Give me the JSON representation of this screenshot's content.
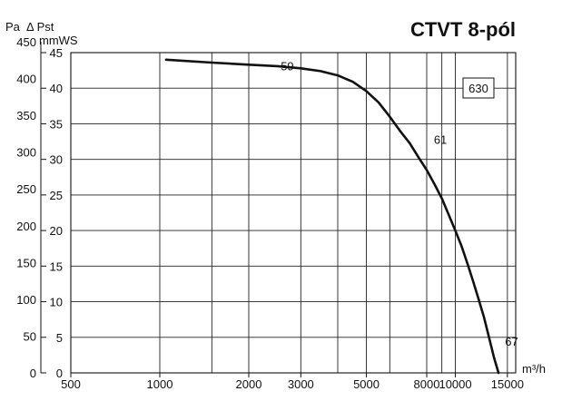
{
  "chart_data": {
    "type": "line",
    "title": "CTVT 8-pól",
    "y_label_pa": "Pa",
    "y_label_pst": "Δ Pst",
    "y_label_mmws": "mmWS",
    "x_unit": "m³/h",
    "x_scale": "log",
    "xlim": [
      500,
      16000
    ],
    "ylim_pa": [
      0,
      450
    ],
    "ylim_mmws": [
      0,
      45
    ],
    "x_ticks": [
      500,
      1000,
      2000,
      3000,
      5000,
      8000,
      10000,
      15000
    ],
    "x_tick_labels": [
      "500",
      "1000",
      "2000",
      "3000",
      "5000",
      "8000",
      "10000",
      "15000"
    ],
    "x_gridlines": [
      1000,
      1500,
      2000,
      3000,
      4000,
      5000,
      6000,
      8000,
      9000,
      10000,
      15000
    ],
    "y_ticks_pa": [
      0,
      50,
      100,
      150,
      200,
      250,
      300,
      350,
      400,
      450
    ],
    "y_ticks_mmws": [
      0,
      5,
      10,
      15,
      20,
      25,
      30,
      35,
      40,
      45
    ],
    "grid": true,
    "series": [
      {
        "model": "630",
        "x": [
          1050,
          1500,
          2000,
          2500,
          3000,
          3500,
          4000,
          4500,
          5000,
          5500,
          6000,
          6500,
          7000,
          7500,
          8000,
          8500,
          9000,
          9500,
          10000,
          10500,
          11000,
          11500,
          12000,
          12500,
          13000,
          13500,
          14000
        ],
        "y": [
          440,
          436,
          433,
          431,
          428,
          424,
          418,
          409,
          396,
          380,
          360,
          340,
          323,
          303,
          285,
          265,
          245,
          222,
          200,
          178,
          153,
          128,
          103,
          78,
          50,
          22,
          0
        ]
      }
    ],
    "annotations": [
      {
        "text": "59",
        "x": 2700,
        "y": 425
      },
      {
        "text": "61",
        "x": 8900,
        "y": 322
      },
      {
        "text": "67",
        "x": 15500,
        "y": 38
      }
    ],
    "boxed_label": "630"
  }
}
